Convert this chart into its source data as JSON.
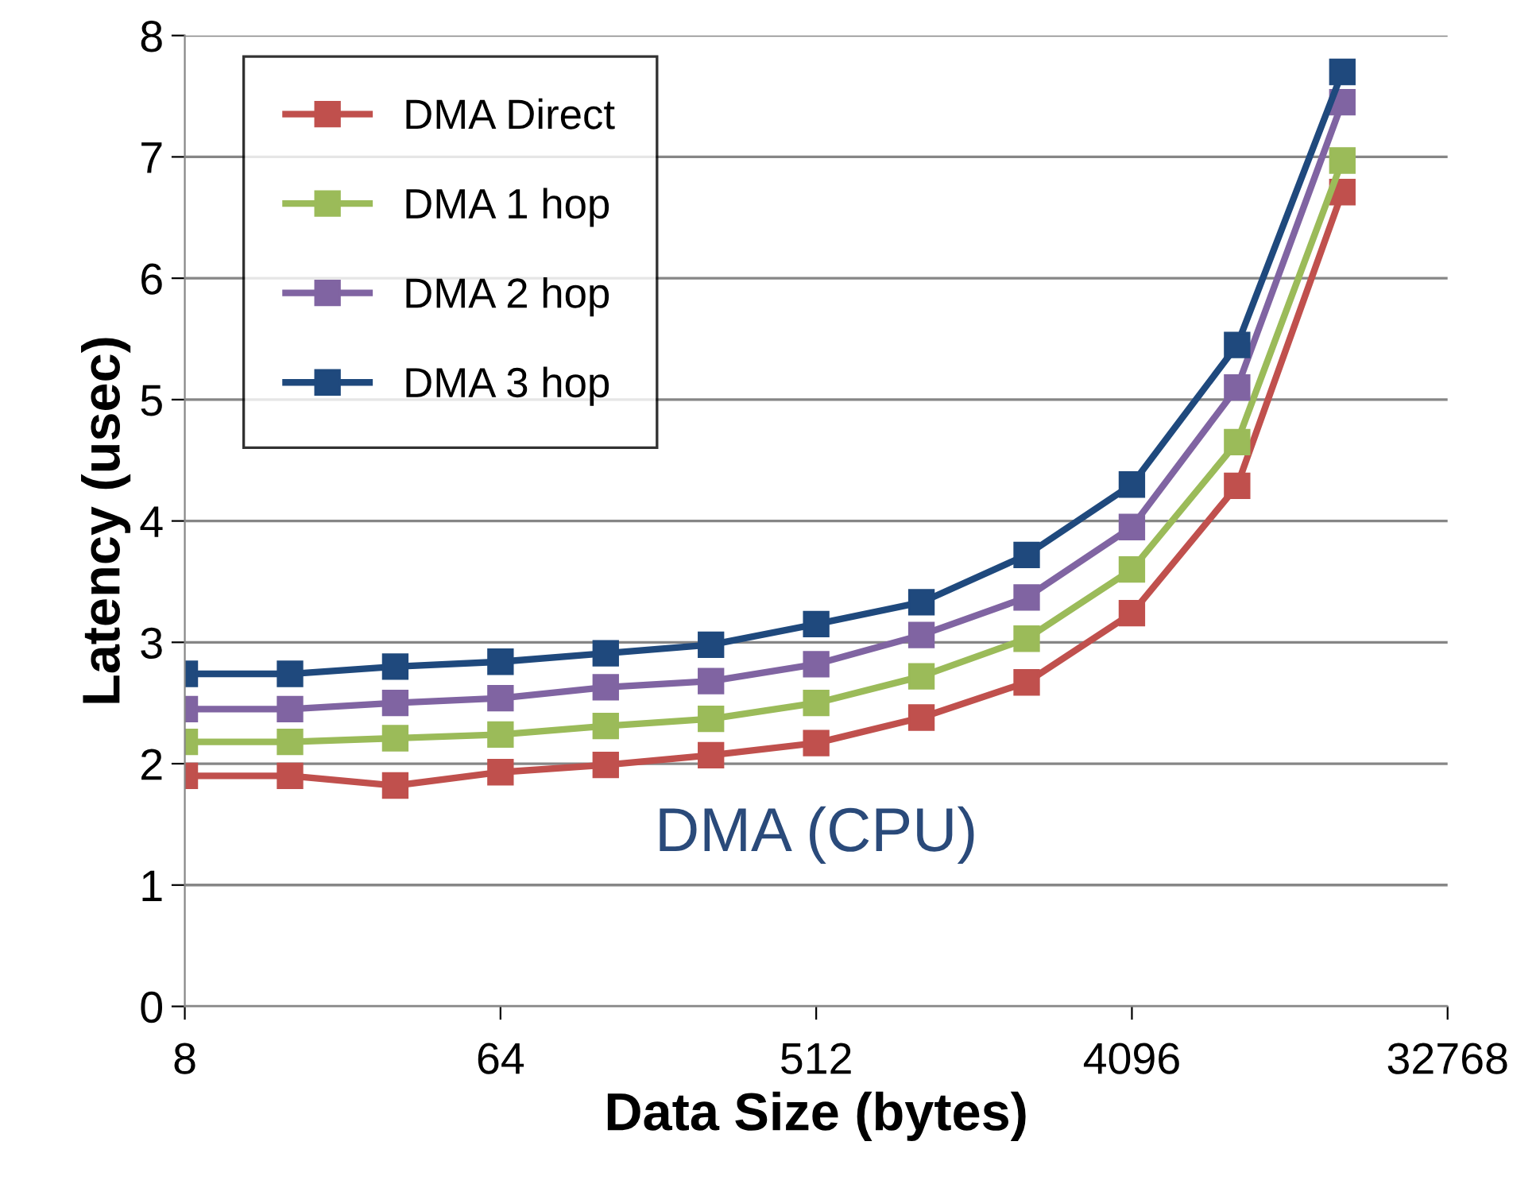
{
  "chart_data": {
    "type": "line",
    "xlabel": "Data Size (bytes)",
    "ylabel": "Latency (usec)",
    "x": [
      8,
      16,
      32,
      64,
      128,
      256,
      512,
      1024,
      2048,
      4096,
      8192,
      16384
    ],
    "series": [
      {
        "name": "DMA Direct",
        "color": "#c0504d",
        "values": [
          1.9,
          1.9,
          1.82,
          1.93,
          1.99,
          2.07,
          2.17,
          2.38,
          2.67,
          3.24,
          4.29,
          6.71
        ]
      },
      {
        "name": "DMA 1 hop",
        "color": "#9bbb59",
        "values": [
          2.18,
          2.18,
          2.21,
          2.24,
          2.31,
          2.37,
          2.5,
          2.72,
          3.03,
          3.6,
          4.65,
          6.97
        ]
      },
      {
        "name": "DMA 2 hop",
        "color": "#8064a2",
        "values": [
          2.45,
          2.45,
          2.5,
          2.54,
          2.63,
          2.68,
          2.82,
          3.06,
          3.37,
          3.95,
          5.1,
          7.45
        ]
      },
      {
        "name": "DMA 3 hop",
        "color": "#1f497d",
        "values": [
          2.74,
          2.74,
          2.8,
          2.84,
          2.91,
          2.98,
          3.15,
          3.33,
          3.72,
          4.3,
          5.45,
          7.7
        ]
      }
    ],
    "annotations": [
      "DMA (CPU)"
    ],
    "log": "x",
    "xlim": [
      8,
      32768
    ],
    "xticks": [
      8,
      64,
      512,
      4096,
      32768
    ],
    "ylim": [
      0,
      8
    ],
    "yticks": [
      0,
      1,
      2,
      3,
      4,
      5,
      6,
      7,
      8
    ],
    "grid": "y",
    "legend": "top left",
    "marker": "square",
    "line_style": "solid"
  }
}
